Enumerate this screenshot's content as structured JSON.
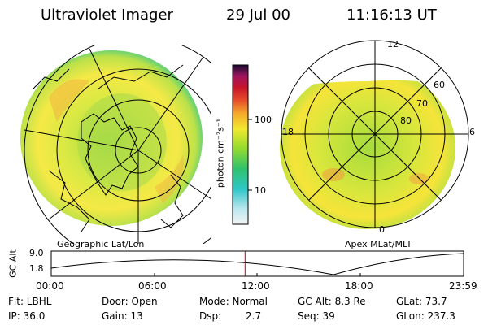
{
  "header": {
    "title": "Ultraviolet Imager",
    "date": "29 Jul 00",
    "time": "11:16:13 UT"
  },
  "left_panel": {
    "caption": "Geographic Lat/Lon"
  },
  "right_panel": {
    "caption": "Apex MLat/MLT",
    "mlt_labels": [
      "12",
      "18",
      "6",
      "0"
    ],
    "mlat_labels": [
      "60",
      "70",
      "80"
    ]
  },
  "colorbar": {
    "unit_label": "photon cm⁻²s⁻¹",
    "ticks": [
      "100",
      "10"
    ]
  },
  "orbit_plot": {
    "ylabel": "GC Alt",
    "y_ticks": [
      "9.0",
      "1.8"
    ],
    "x_ticks": [
      "00:00",
      "06:00",
      "12:00",
      "18:00",
      "23:59"
    ],
    "current_time_fraction": 0.47
  },
  "info": {
    "flt": "Flt: LBHL",
    "ip": "IP: 36.0",
    "door": "Door: Open",
    "gain": "Gain: 13",
    "mode": "Mode: Normal",
    "dsp_label": "Dsp:",
    "dsp_value": "2.7",
    "gc_alt": "GC Alt: 8.3 Re",
    "seq": "Seq: 39",
    "glat": "GLat: 73.7",
    "glon": "GLon: 237.3"
  },
  "colors": {
    "bg": "#ffffff",
    "line": "#000000",
    "marker": "#cc0000",
    "aurora_outer": "#22c27a",
    "aurora_mid": "#9fdc3a",
    "aurora_core": "#f5e83c",
    "aurora_hot": "#f0a53a"
  }
}
